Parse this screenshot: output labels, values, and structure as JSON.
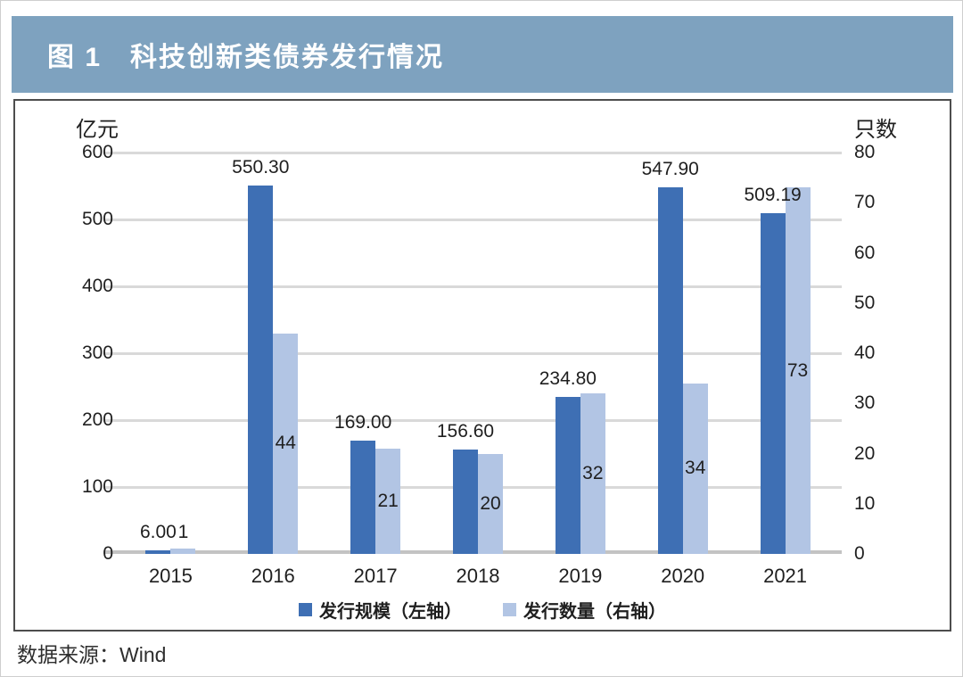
{
  "header": {
    "title": "图 1　科技创新类债券发行情况",
    "bg_color": "#7EA2BF"
  },
  "chart_data": {
    "type": "bar",
    "title": "科技创新类债券发行情况",
    "categories": [
      "2015",
      "2016",
      "2017",
      "2018",
      "2019",
      "2020",
      "2021"
    ],
    "series": [
      {
        "name": "发行规模（左轴）",
        "axis": "left",
        "color": "#3E6FB4",
        "values": [
          6.0,
          550.3,
          169.0,
          156.6,
          234.8,
          547.9,
          509.19
        ],
        "labels": [
          "6.00",
          "550.30",
          "169.00",
          "156.60",
          "234.80",
          "547.90",
          "509.19"
        ]
      },
      {
        "name": "发行数量（右轴）",
        "axis": "right",
        "color": "#B2C5E4",
        "values": [
          1,
          44,
          21,
          20,
          32,
          34,
          73
        ],
        "labels": [
          "1",
          "44",
          "21",
          "20",
          "32",
          "34",
          "73"
        ]
      }
    ],
    "left_axis": {
      "unit": "亿元",
      "min": 0,
      "max": 600,
      "step": 100,
      "ticks": [
        "600",
        "500",
        "400",
        "300",
        "200",
        "100",
        "0"
      ]
    },
    "right_axis": {
      "unit": "只数",
      "min": 0,
      "max": 80,
      "step": 10,
      "ticks": [
        "80",
        "70",
        "60",
        "50",
        "40",
        "30",
        "20",
        "10",
        "0"
      ]
    },
    "grid": true,
    "gridline_color": "#d9d9d9",
    "legend_position": "bottom"
  },
  "source": {
    "text": "数据来源：Wind"
  }
}
